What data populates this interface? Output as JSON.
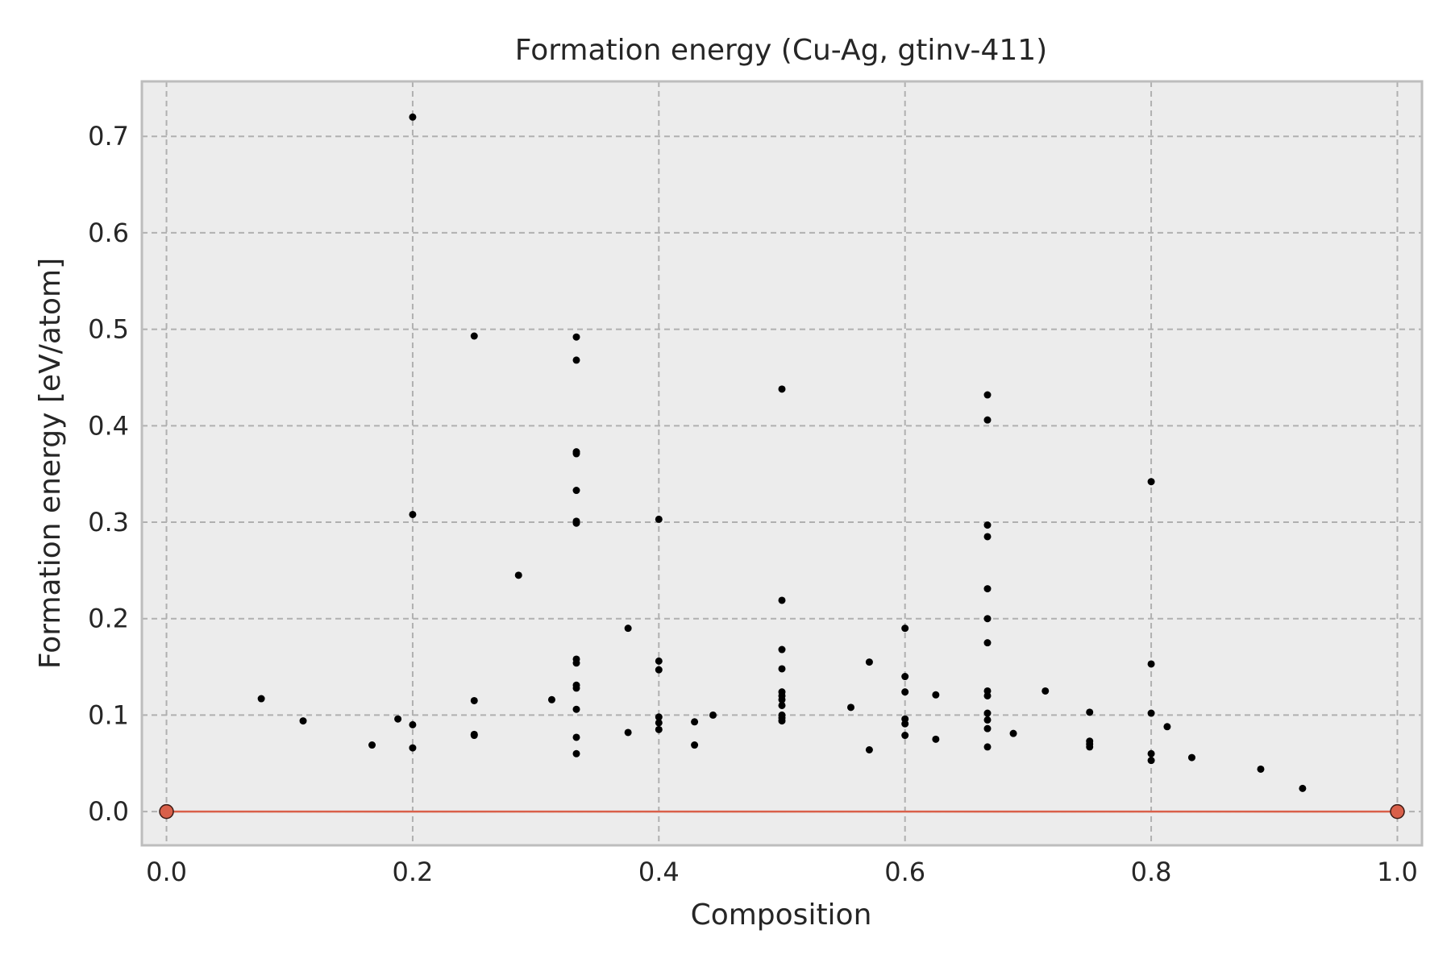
{
  "chart_data": {
    "type": "scatter",
    "title": "Formation energy (Cu-Ag, gtinv-411)",
    "xlabel": "Composition",
    "ylabel": "Formation energy [eV/atom]",
    "xlim": [
      -0.02,
      1.02
    ],
    "ylim": [
      -0.035,
      0.757
    ],
    "xticks": [
      0.0,
      0.2,
      0.4,
      0.6,
      0.8,
      1.0
    ],
    "xtick_labels": [
      "0.0",
      "0.2",
      "0.4",
      "0.6",
      "0.8",
      "1.0"
    ],
    "yticks": [
      0.0,
      0.1,
      0.2,
      0.3,
      0.4,
      0.5,
      0.6,
      0.7
    ],
    "ytick_labels": [
      "0.0",
      "0.1",
      "0.2",
      "0.3",
      "0.4",
      "0.5",
      "0.6",
      "0.7"
    ],
    "grid": true,
    "colors": {
      "background": "#ececec",
      "points": "#000000",
      "hull": "#d9604a",
      "grid": "#b0b0b0",
      "frame": "#bdbdbd"
    },
    "series": [
      {
        "kind": "scatter",
        "points": [
          [
            0.077,
            0.117
          ],
          [
            0.111,
            0.094
          ],
          [
            0.167,
            0.069
          ],
          [
            0.188,
            0.096
          ],
          [
            0.2,
            0.72
          ],
          [
            0.2,
            0.308
          ],
          [
            0.2,
            0.09
          ],
          [
            0.2,
            0.066
          ],
          [
            0.25,
            0.493
          ],
          [
            0.25,
            0.115
          ],
          [
            0.25,
            0.08
          ],
          [
            0.25,
            0.079
          ],
          [
            0.286,
            0.245
          ],
          [
            0.313,
            0.116
          ],
          [
            0.333,
            0.492
          ],
          [
            0.333,
            0.468
          ],
          [
            0.333,
            0.373
          ],
          [
            0.333,
            0.371
          ],
          [
            0.333,
            0.333
          ],
          [
            0.333,
            0.301
          ],
          [
            0.333,
            0.299
          ],
          [
            0.333,
            0.158
          ],
          [
            0.333,
            0.154
          ],
          [
            0.333,
            0.131
          ],
          [
            0.333,
            0.128
          ],
          [
            0.333,
            0.106
          ],
          [
            0.333,
            0.077
          ],
          [
            0.333,
            0.06
          ],
          [
            0.375,
            0.19
          ],
          [
            0.375,
            0.082
          ],
          [
            0.4,
            0.303
          ],
          [
            0.4,
            0.156
          ],
          [
            0.4,
            0.147
          ],
          [
            0.4,
            0.098
          ],
          [
            0.4,
            0.092
          ],
          [
            0.4,
            0.085
          ],
          [
            0.429,
            0.093
          ],
          [
            0.429,
            0.069
          ],
          [
            0.444,
            0.1
          ],
          [
            0.5,
            0.438
          ],
          [
            0.5,
            0.219
          ],
          [
            0.5,
            0.168
          ],
          [
            0.5,
            0.148
          ],
          [
            0.5,
            0.124
          ],
          [
            0.5,
            0.12
          ],
          [
            0.5,
            0.116
          ],
          [
            0.5,
            0.11
          ],
          [
            0.5,
            0.1
          ],
          [
            0.5,
            0.097
          ],
          [
            0.5,
            0.094
          ],
          [
            0.556,
            0.108
          ],
          [
            0.571,
            0.155
          ],
          [
            0.571,
            0.064
          ],
          [
            0.6,
            0.19
          ],
          [
            0.6,
            0.14
          ],
          [
            0.6,
            0.124
          ],
          [
            0.6,
            0.096
          ],
          [
            0.6,
            0.091
          ],
          [
            0.6,
            0.079
          ],
          [
            0.625,
            0.121
          ],
          [
            0.625,
            0.075
          ],
          [
            0.667,
            0.432
          ],
          [
            0.667,
            0.406
          ],
          [
            0.667,
            0.297
          ],
          [
            0.667,
            0.285
          ],
          [
            0.667,
            0.231
          ],
          [
            0.667,
            0.2
          ],
          [
            0.667,
            0.175
          ],
          [
            0.667,
            0.125
          ],
          [
            0.667,
            0.12
          ],
          [
            0.667,
            0.102
          ],
          [
            0.667,
            0.095
          ],
          [
            0.667,
            0.086
          ],
          [
            0.667,
            0.067
          ],
          [
            0.688,
            0.081
          ],
          [
            0.714,
            0.125
          ],
          [
            0.75,
            0.103
          ],
          [
            0.75,
            0.073
          ],
          [
            0.75,
            0.07
          ],
          [
            0.75,
            0.067
          ],
          [
            0.8,
            0.342
          ],
          [
            0.8,
            0.153
          ],
          [
            0.8,
            0.102
          ],
          [
            0.8,
            0.06
          ],
          [
            0.8,
            0.053
          ],
          [
            0.813,
            0.088
          ],
          [
            0.833,
            0.056
          ],
          [
            0.889,
            0.044
          ],
          [
            0.923,
            0.024
          ]
        ]
      },
      {
        "kind": "hull",
        "points": [
          [
            0.0,
            0.0
          ],
          [
            1.0,
            0.0
          ]
        ]
      }
    ]
  }
}
